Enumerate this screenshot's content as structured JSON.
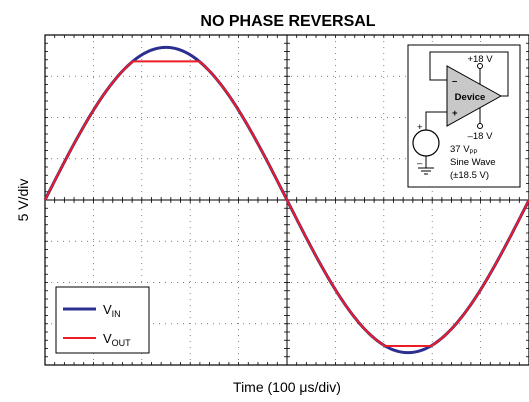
{
  "chart_data": {
    "type": "line",
    "title": "NO PHASE REVERSAL",
    "xlabel_prefix": "Time (100 ",
    "xlabel_mu": "μ",
    "xlabel_suffix": "s/div)",
    "ylabel": "5 V/div",
    "x_unit": "div",
    "y_unit": "V",
    "xlim": [
      0,
      10
    ],
    "ylim": [
      -20,
      20
    ],
    "grid": true,
    "legend_position": "bottom-left",
    "series": [
      {
        "name_main": "V",
        "name_sub": "IN",
        "color": "#2b2f8f",
        "description": "sine",
        "amplitude": 18.5,
        "period_div": 10,
        "x": [
          0,
          1,
          2,
          2.5,
          3,
          4,
          5,
          6,
          7,
          7.5,
          8,
          9,
          10
        ],
        "values": [
          0,
          10.9,
          17.6,
          18.5,
          17.6,
          10.9,
          0,
          -10.9,
          -17.6,
          -18.5,
          -17.6,
          -10.9,
          0
        ]
      },
      {
        "name_main": "V",
        "name_sub": "OUT",
        "color": "#ee1c24",
        "description": "clipped sine",
        "clip_high": 16.8,
        "clip_low": -17.7,
        "x": [
          0,
          1,
          2,
          2.5,
          3,
          4,
          5,
          6,
          7,
          7.5,
          8,
          9,
          10
        ],
        "values": [
          0,
          10.9,
          16.8,
          16.8,
          16.8,
          10.9,
          0,
          -10.9,
          -17.6,
          -17.7,
          -17.6,
          -10.9,
          0
        ]
      }
    ],
    "inset": {
      "vplus": "+18 V",
      "vminus": "–18 V",
      "device": "Device",
      "minus_sign": "–",
      "plus_sign": "+",
      "source_plus": "+",
      "source_minus": "–",
      "amp_main": "37 V",
      "amp_sub": "PP",
      "wave": "Sine Wave",
      "range": "(±18.5 V)"
    }
  }
}
